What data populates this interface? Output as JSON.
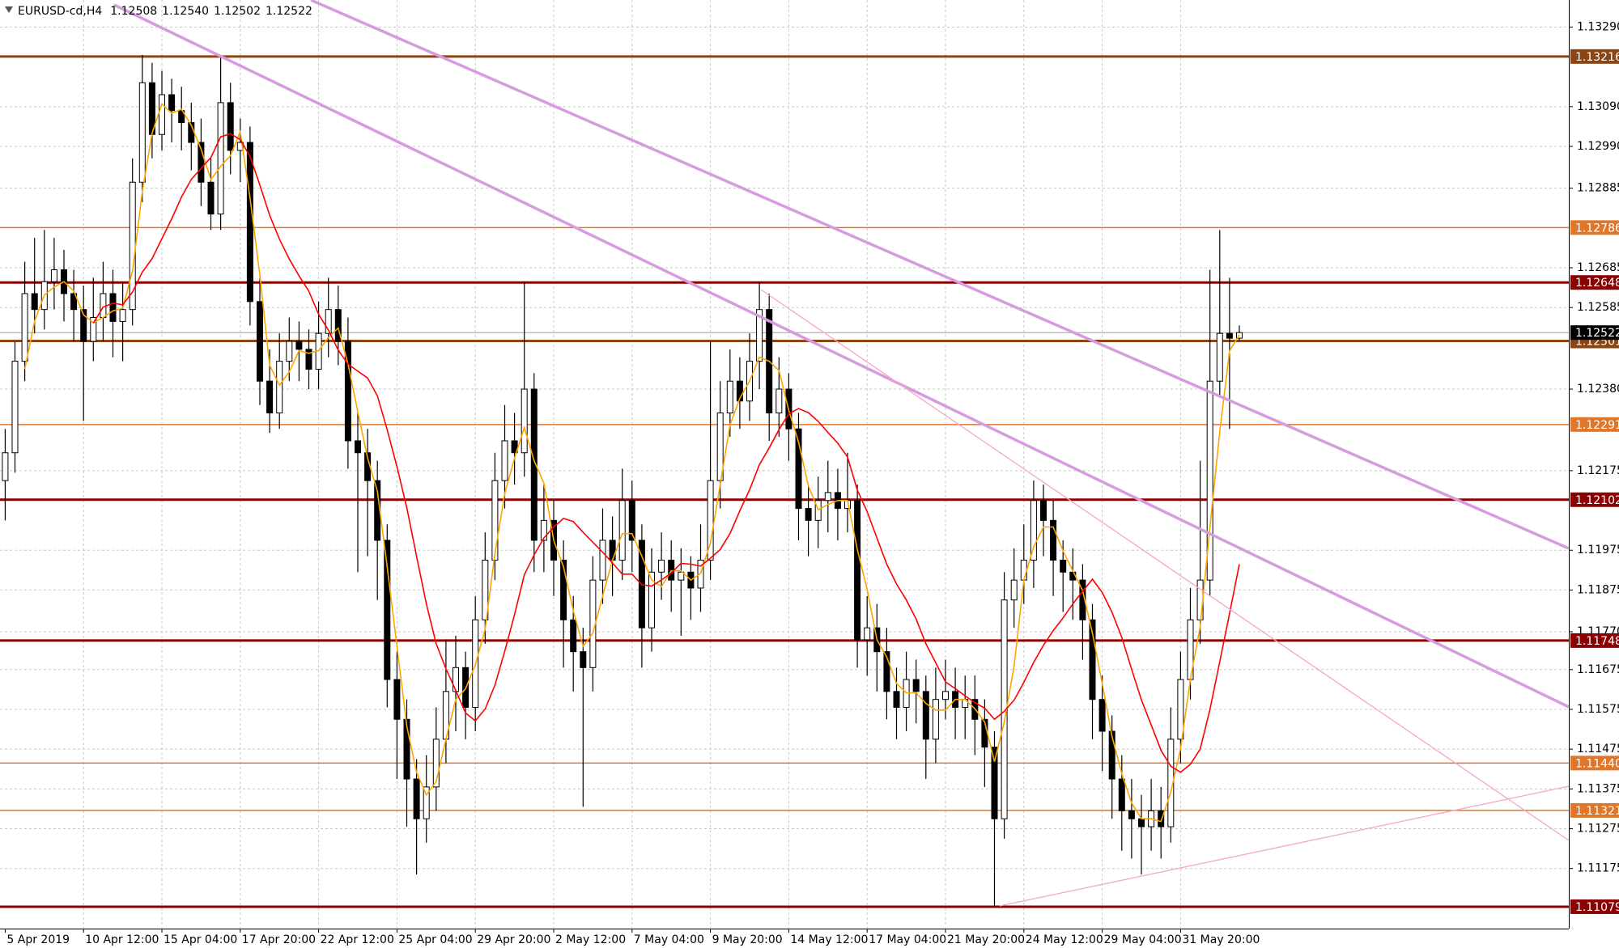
{
  "header": {
    "symbol": "EURUSD-cd,H4",
    "ohlc": [
      "1.12508",
      "1.12540",
      "1.12502",
      "1.12522"
    ]
  },
  "chart_data": {
    "type": "candlestick",
    "categories": [
      "5 Apr 2019",
      null,
      null,
      null,
      null,
      null,
      null,
      null,
      "10 Apr 12:00",
      null,
      null,
      null,
      null,
      null,
      null,
      null,
      "15 Apr 04:00",
      null,
      null,
      null,
      null,
      null,
      null,
      null,
      "17 Apr 20:00",
      null,
      null,
      null,
      null,
      null,
      null,
      null,
      "22 Apr 12:00",
      null,
      null,
      null,
      null,
      null,
      null,
      null,
      "25 Apr 04:00",
      null,
      null,
      null,
      null,
      null,
      null,
      null,
      "29 Apr 20:00",
      null,
      null,
      null,
      null,
      null,
      null,
      null,
      "2 May 12:00",
      null,
      null,
      null,
      null,
      null,
      null,
      null,
      "7 May 04:00",
      null,
      null,
      null,
      null,
      null,
      null,
      null,
      "9 May 20:00",
      null,
      null,
      null,
      null,
      null,
      null,
      null,
      "14 May 12:00",
      null,
      null,
      null,
      null,
      null,
      null,
      null,
      "17 May 04:00",
      null,
      null,
      null,
      null,
      null,
      null,
      null,
      "21 May 20:00",
      null,
      null,
      null,
      null,
      null,
      null,
      null,
      "24 May 12:00",
      null,
      null,
      null,
      null,
      null,
      null,
      null,
      "29 May 04:00",
      null,
      null,
      null,
      null,
      null,
      null,
      null,
      "31 May 20:00",
      null,
      null,
      null,
      null,
      null,
      null
    ],
    "open": [
      1.1215,
      1.1222,
      1.1245,
      1.1262,
      1.1258,
      1.1265,
      1.1268,
      1.1262,
      1.1258,
      1.125,
      1.1256,
      1.1262,
      1.1255,
      1.1258,
      1.129,
      1.1315,
      1.1302,
      1.1312,
      1.1308,
      1.1305,
      1.13,
      1.129,
      1.1282,
      1.131,
      1.1298,
      1.13,
      1.126,
      1.124,
      1.1232,
      1.1245,
      1.125,
      1.1248,
      1.1243,
      1.1252,
      1.1258,
      1.125,
      1.1225,
      1.1222,
      1.1215,
      1.12,
      1.1165,
      1.1155,
      1.114,
      1.113,
      1.1138,
      1.115,
      1.1162,
      1.1168,
      1.1158,
      1.118,
      1.1195,
      1.1215,
      1.1225,
      1.1222,
      1.1238,
      1.12,
      1.1205,
      1.1195,
      1.118,
      1.1172,
      1.1168,
      1.119,
      1.12,
      1.1195,
      1.121,
      1.12,
      1.1178,
      1.1192,
      1.1195,
      1.119,
      1.1192,
      1.1188,
      1.1195,
      1.1215,
      1.1232,
      1.124,
      1.1235,
      1.1245,
      1.1258,
      1.1232,
      1.1238,
      1.1228,
      1.1208,
      1.1205,
      1.121,
      1.1212,
      1.1208,
      1.121,
      1.1175,
      1.1178,
      1.1172,
      1.1162,
      1.1158,
      1.1165,
      1.1162,
      1.115,
      1.116,
      1.1162,
      1.1158,
      1.116,
      1.1155,
      1.1148,
      1.113,
      1.1185,
      1.119,
      1.1195,
      1.121,
      1.1205,
      1.1195,
      1.1192,
      1.119,
      1.118,
      1.116,
      1.1152,
      1.114,
      1.1132,
      1.113,
      1.1128,
      1.1132,
      1.1128,
      1.115,
      1.1165,
      1.118,
      1.119,
      1.124,
      1.1252,
      1.12508
    ],
    "high": [
      1.1228,
      1.125,
      1.127,
      1.1276,
      1.1278,
      1.1276,
      1.1273,
      1.1268,
      1.1264,
      1.1266,
      1.127,
      1.1268,
      1.1265,
      1.1296,
      1.1322,
      1.132,
      1.1318,
      1.1316,
      1.1314,
      1.131,
      1.1306,
      1.1296,
      1.1322,
      1.1315,
      1.1306,
      1.1304,
      1.1266,
      1.1248,
      1.1252,
      1.1256,
      1.1255,
      1.1253,
      1.126,
      1.1266,
      1.1264,
      1.1256,
      1.1232,
      1.1228,
      1.122,
      1.1204,
      1.1172,
      1.116,
      1.1145,
      1.1146,
      1.1158,
      1.1175,
      1.1176,
      1.1172,
      1.1186,
      1.1202,
      1.1222,
      1.1234,
      1.1232,
      1.1265,
      1.1242,
      1.1214,
      1.121,
      1.12,
      1.1186,
      1.1178,
      1.1196,
      1.1208,
      1.1206,
      1.1218,
      1.1215,
      1.1204,
      1.1198,
      1.1202,
      1.12,
      1.1198,
      1.1196,
      1.1204,
      1.125,
      1.124,
      1.1248,
      1.1246,
      1.1252,
      1.1265,
      1.1262,
      1.1246,
      1.1242,
      1.1232,
      1.1214,
      1.1216,
      1.122,
      1.1218,
      1.1222,
      1.1214,
      1.1186,
      1.1184,
      1.1178,
      1.1168,
      1.1172,
      1.117,
      1.1166,
      1.1168,
      1.117,
      1.1168,
      1.1166,
      1.1166,
      1.116,
      1.1152,
      1.1192,
      1.1198,
      1.1204,
      1.1215,
      1.1214,
      1.121,
      1.12,
      1.1198,
      1.1194,
      1.1184,
      1.1166,
      1.1156,
      1.1146,
      1.114,
      1.1136,
      1.114,
      1.1138,
      1.1158,
      1.1172,
      1.1188,
      1.122,
      1.1268,
      1.1278,
      1.1266,
      1.1254
    ],
    "low": [
      1.1205,
      1.1217,
      1.124,
      1.1252,
      1.1253,
      1.1258,
      1.1255,
      1.125,
      1.123,
      1.1245,
      1.125,
      1.1246,
      1.1245,
      1.1254,
      1.1285,
      1.1296,
      1.1298,
      1.13,
      1.1298,
      1.1293,
      1.1284,
      1.1278,
      1.1278,
      1.1292,
      1.129,
      1.1254,
      1.1234,
      1.1227,
      1.1228,
      1.124,
      1.124,
      1.1238,
      1.1238,
      1.1246,
      1.1244,
      1.1218,
      1.1192,
      1.1196,
      1.1185,
      1.1158,
      1.114,
      1.1128,
      1.1116,
      1.1124,
      1.1132,
      1.1144,
      1.1152,
      1.115,
      1.1152,
      1.1174,
      1.119,
      1.1208,
      1.1214,
      1.1216,
      1.1192,
      1.1192,
      1.1186,
      1.1168,
      1.1162,
      1.1133,
      1.1162,
      1.1184,
      1.1186,
      1.119,
      1.1192,
      1.1168,
      1.1172,
      1.1185,
      1.1182,
      1.1176,
      1.118,
      1.1182,
      1.119,
      1.1208,
      1.1226,
      1.1228,
      1.123,
      1.1238,
      1.1225,
      1.1226,
      1.122,
      1.12,
      1.1196,
      1.1198,
      1.1202,
      1.12,
      1.1202,
      1.1168,
      1.1166,
      1.1162,
      1.1155,
      1.115,
      1.1152,
      1.1154,
      1.114,
      1.1144,
      1.1155,
      1.115,
      1.115,
      1.1146,
      1.1138,
      1.1108,
      1.1125,
      1.1178,
      1.1184,
      1.1188,
      1.1196,
      1.1186,
      1.1182,
      1.118,
      1.117,
      1.115,
      1.1142,
      1.113,
      1.1122,
      1.112,
      1.1116,
      1.1122,
      1.112,
      1.1124,
      1.1144,
      1.116,
      1.1174,
      1.1186,
      1.1236,
      1.1228,
      1.12502
    ],
    "close": [
      1.1222,
      1.1245,
      1.1262,
      1.1258,
      1.1265,
      1.1268,
      1.1262,
      1.1258,
      1.125,
      1.1256,
      1.1262,
      1.1255,
      1.1258,
      1.129,
      1.1315,
      1.1302,
      1.1312,
      1.1308,
      1.1305,
      1.13,
      1.129,
      1.1282,
      1.131,
      1.1298,
      1.13,
      1.126,
      1.124,
      1.1232,
      1.1245,
      1.125,
      1.1248,
      1.1243,
      1.1252,
      1.1258,
      1.125,
      1.1225,
      1.1222,
      1.1215,
      1.12,
      1.1165,
      1.1155,
      1.114,
      1.113,
      1.1138,
      1.115,
      1.1162,
      1.1168,
      1.1158,
      1.118,
      1.1195,
      1.1215,
      1.1225,
      1.1222,
      1.1238,
      1.12,
      1.1205,
      1.1195,
      1.118,
      1.1172,
      1.1168,
      1.119,
      1.12,
      1.1195,
      1.121,
      1.12,
      1.1178,
      1.1192,
      1.1195,
      1.119,
      1.1192,
      1.1188,
      1.1195,
      1.1215,
      1.1232,
      1.124,
      1.1235,
      1.1245,
      1.1258,
      1.1232,
      1.1238,
      1.1228,
      1.1208,
      1.1205,
      1.121,
      1.1212,
      1.1208,
      1.121,
      1.1175,
      1.1178,
      1.1172,
      1.1162,
      1.1158,
      1.1165,
      1.1162,
      1.115,
      1.116,
      1.1162,
      1.1158,
      1.116,
      1.1155,
      1.1148,
      1.113,
      1.1185,
      1.119,
      1.1195,
      1.121,
      1.1205,
      1.1195,
      1.1192,
      1.119,
      1.118,
      1.116,
      1.1152,
      1.114,
      1.1132,
      1.113,
      1.1128,
      1.1132,
      1.1128,
      1.115,
      1.1165,
      1.118,
      1.119,
      1.124,
      1.1252,
      1.12508,
      1.12522
    ],
    "ylim": [
      1.11024,
      1.13358
    ],
    "yticks": [
      {
        "value": 1.1329,
        "label": "1.13290"
      },
      {
        "value": 1.1309,
        "label": "1.13090"
      },
      {
        "value": 1.1299,
        "label": "1.12990"
      },
      1.12885,
      1.12685,
      1.12585,
      {
        "value": 1.1238,
        "label": "1.12380"
      },
      1.12175,
      1.11975,
      1.11875,
      {
        "value": 1.1177,
        "label": "1.11770"
      },
      1.11675,
      1.11575,
      1.11475,
      1.11375,
      1.11275,
      1.11175
    ],
    "grid": true,
    "bull_color": "#ffffff",
    "bear_color": "#000000",
    "current_price": 1.12522,
    "levels": [
      {
        "price": 1.13216,
        "color": "#8b4513"
      },
      {
        "price": 1.12786,
        "color": "#e0762a"
      },
      {
        "price": 1.12648,
        "color": "#8b0000"
      },
      {
        "price": 1.12501,
        "color": "#8b4513"
      },
      {
        "price": 1.12291,
        "color": "#e0762a"
      },
      {
        "price": 1.12102,
        "color": "#8b0000"
      },
      {
        "price": 1.11748,
        "color": "#8b0000"
      },
      {
        "price": {
          "value": 1.1144,
          "label": "1.11440"
        },
        "color": "#e0762a"
      },
      {
        "price": 1.11321,
        "color": "#e0762a"
      },
      {
        "price": 1.11079,
        "color": "#8b0000"
      }
    ]
  }
}
